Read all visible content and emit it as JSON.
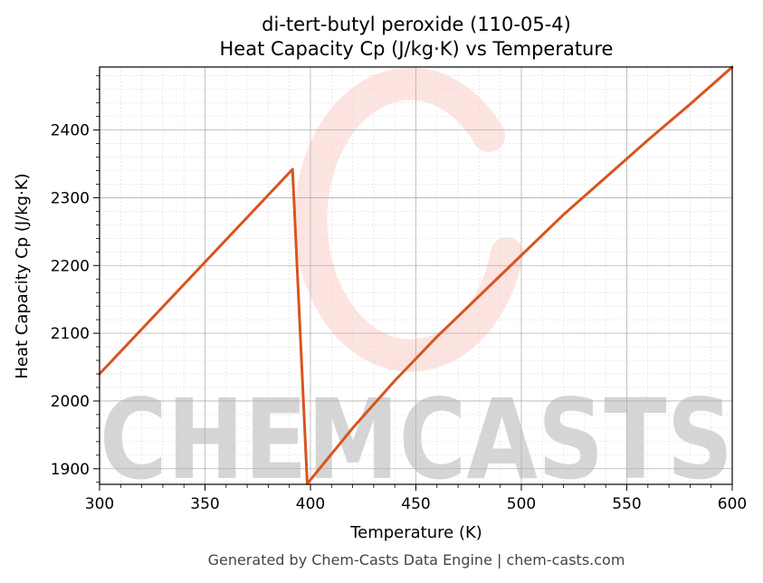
{
  "chart_data": {
    "type": "line",
    "title": "di-tert-butyl peroxide (110-05-4)",
    "subtitle": "Heat Capacity Cp (J/kg·K) vs Temperature",
    "xlabel": "Temperature (K)",
    "ylabel": "Heat Capacity Cp (J/kg·K)",
    "xlim": [
      300,
      600
    ],
    "ylim": [
      1877,
      2493
    ],
    "x_ticks": [
      300,
      350,
      400,
      450,
      500,
      550,
      600
    ],
    "y_ticks": [
      1900,
      2000,
      2100,
      2200,
      2300,
      2400
    ],
    "grid": true,
    "legend": "none",
    "series": [
      {
        "color": "#d9541e",
        "points": [
          [
            300,
            2040
          ],
          [
            391.5,
            2342
          ],
          [
            398.5,
            1878
          ],
          [
            420,
            1960
          ],
          [
            440,
            2030
          ],
          [
            460,
            2095
          ],
          [
            480,
            2155
          ],
          [
            500,
            2215
          ],
          [
            520,
            2275
          ],
          [
            540,
            2330
          ],
          [
            560,
            2385
          ],
          [
            580,
            2438
          ],
          [
            600,
            2493
          ]
        ]
      }
    ],
    "watermark": "CHEMCASTS",
    "footer": "Generated by Chem-Casts Data Engine | chem-casts.com"
  }
}
